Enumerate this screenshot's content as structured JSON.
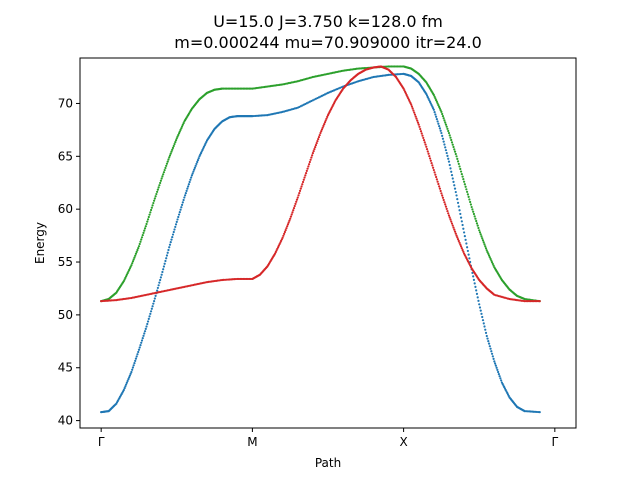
{
  "chart_data": {
    "type": "scatter",
    "title_line1": "U=15.0 J=3.750 k=128.0  fm",
    "title_line2": "m=0.000244 mu=70.909000 itr=24.0",
    "xlabel": "Path",
    "ylabel": "Energy",
    "x_ticks": [
      {
        "x": 0,
        "label": "Γ"
      },
      {
        "x": 1,
        "label": "M"
      },
      {
        "x": 2,
        "label": "X"
      },
      {
        "x": 3,
        "label": "Γ"
      }
    ],
    "xlim": [
      -0.14,
      3.14
    ],
    "ylim": [
      39.3,
      74.3
    ],
    "y_ticks": [
      40,
      45,
      50,
      55,
      60,
      65,
      70
    ],
    "grid": false,
    "legend": "none",
    "series": [
      {
        "color": "#1f77b4",
        "points": [
          [
            0,
            40.8
          ],
          [
            0.05,
            40.9
          ],
          [
            0.1,
            41.6
          ],
          [
            0.15,
            42.9
          ],
          [
            0.2,
            44.6
          ],
          [
            0.25,
            46.7
          ],
          [
            0.3,
            48.9
          ],
          [
            0.35,
            51.3
          ],
          [
            0.4,
            53.8
          ],
          [
            0.45,
            56.4
          ],
          [
            0.5,
            58.8
          ],
          [
            0.55,
            61.1
          ],
          [
            0.6,
            63.2
          ],
          [
            0.65,
            65.0
          ],
          [
            0.7,
            66.5
          ],
          [
            0.75,
            67.6
          ],
          [
            0.8,
            68.3
          ],
          [
            0.85,
            68.7
          ],
          [
            0.9,
            68.8
          ],
          [
            0.95,
            68.8
          ],
          [
            1.0,
            68.8
          ],
          [
            1.1,
            68.9
          ],
          [
            1.2,
            69.2
          ],
          [
            1.3,
            69.6
          ],
          [
            1.4,
            70.3
          ],
          [
            1.5,
            71.0
          ],
          [
            1.6,
            71.6
          ],
          [
            1.7,
            72.1
          ],
          [
            1.8,
            72.5
          ],
          [
            1.9,
            72.7
          ],
          [
            2.0,
            72.8
          ],
          [
            2.05,
            72.6
          ],
          [
            2.1,
            72.0
          ],
          [
            2.15,
            70.9
          ],
          [
            2.2,
            69.4
          ],
          [
            2.25,
            67.2
          ],
          [
            2.3,
            64.5
          ],
          [
            2.35,
            61.3
          ],
          [
            2.4,
            57.8
          ],
          [
            2.45,
            54.3
          ],
          [
            2.5,
            51.0
          ],
          [
            2.55,
            48.0
          ],
          [
            2.6,
            45.6
          ],
          [
            2.65,
            43.6
          ],
          [
            2.7,
            42.2
          ],
          [
            2.75,
            41.3
          ],
          [
            2.8,
            40.9
          ],
          [
            2.9,
            40.8
          ]
        ]
      },
      {
        "color": "#2ca02c",
        "points": [
          [
            0,
            51.3
          ],
          [
            0.05,
            51.5
          ],
          [
            0.1,
            52.1
          ],
          [
            0.15,
            53.2
          ],
          [
            0.2,
            54.7
          ],
          [
            0.25,
            56.5
          ],
          [
            0.3,
            58.6
          ],
          [
            0.35,
            60.8
          ],
          [
            0.4,
            62.9
          ],
          [
            0.45,
            64.9
          ],
          [
            0.5,
            66.7
          ],
          [
            0.55,
            68.3
          ],
          [
            0.6,
            69.5
          ],
          [
            0.65,
            70.4
          ],
          [
            0.7,
            71.0
          ],
          [
            0.75,
            71.3
          ],
          [
            0.8,
            71.4
          ],
          [
            0.9,
            71.4
          ],
          [
            1.0,
            71.4
          ],
          [
            1.1,
            71.6
          ],
          [
            1.2,
            71.8
          ],
          [
            1.3,
            72.1
          ],
          [
            1.4,
            72.5
          ],
          [
            1.5,
            72.8
          ],
          [
            1.6,
            73.1
          ],
          [
            1.7,
            73.3
          ],
          [
            1.8,
            73.4
          ],
          [
            1.9,
            73.5
          ],
          [
            2.0,
            73.5
          ],
          [
            2.05,
            73.3
          ],
          [
            2.1,
            72.8
          ],
          [
            2.15,
            72.0
          ],
          [
            2.2,
            70.8
          ],
          [
            2.25,
            69.2
          ],
          [
            2.3,
            67.2
          ],
          [
            2.35,
            65.0
          ],
          [
            2.4,
            62.6
          ],
          [
            2.45,
            60.2
          ],
          [
            2.5,
            58.0
          ],
          [
            2.55,
            56.1
          ],
          [
            2.6,
            54.5
          ],
          [
            2.65,
            53.3
          ],
          [
            2.7,
            52.4
          ],
          [
            2.75,
            51.8
          ],
          [
            2.8,
            51.5
          ],
          [
            2.9,
            51.3
          ]
        ]
      },
      {
        "color": "#d62728",
        "points": [
          [
            0,
            51.3
          ],
          [
            0.1,
            51.4
          ],
          [
            0.2,
            51.6
          ],
          [
            0.3,
            51.9
          ],
          [
            0.4,
            52.2
          ],
          [
            0.5,
            52.5
          ],
          [
            0.6,
            52.8
          ],
          [
            0.7,
            53.1
          ],
          [
            0.8,
            53.3
          ],
          [
            0.9,
            53.4
          ],
          [
            1.0,
            53.4
          ],
          [
            1.05,
            53.8
          ],
          [
            1.1,
            54.6
          ],
          [
            1.15,
            55.8
          ],
          [
            1.2,
            57.3
          ],
          [
            1.25,
            59.1
          ],
          [
            1.3,
            61.1
          ],
          [
            1.35,
            63.2
          ],
          [
            1.4,
            65.3
          ],
          [
            1.45,
            67.2
          ],
          [
            1.5,
            68.9
          ],
          [
            1.55,
            70.3
          ],
          [
            1.6,
            71.4
          ],
          [
            1.65,
            72.2
          ],
          [
            1.7,
            72.8
          ],
          [
            1.75,
            73.2
          ],
          [
            1.8,
            73.4
          ],
          [
            1.85,
            73.5
          ],
          [
            1.9,
            73.2
          ],
          [
            1.95,
            72.5
          ],
          [
            2.0,
            71.4
          ],
          [
            2.05,
            69.9
          ],
          [
            2.1,
            68.0
          ],
          [
            2.15,
            65.9
          ],
          [
            2.2,
            63.7
          ],
          [
            2.25,
            61.5
          ],
          [
            2.3,
            59.4
          ],
          [
            2.35,
            57.5
          ],
          [
            2.4,
            55.8
          ],
          [
            2.45,
            54.4
          ],
          [
            2.5,
            53.3
          ],
          [
            2.55,
            52.5
          ],
          [
            2.6,
            51.9
          ],
          [
            2.7,
            51.5
          ],
          [
            2.8,
            51.3
          ],
          [
            2.9,
            51.3
          ]
        ]
      }
    ]
  }
}
